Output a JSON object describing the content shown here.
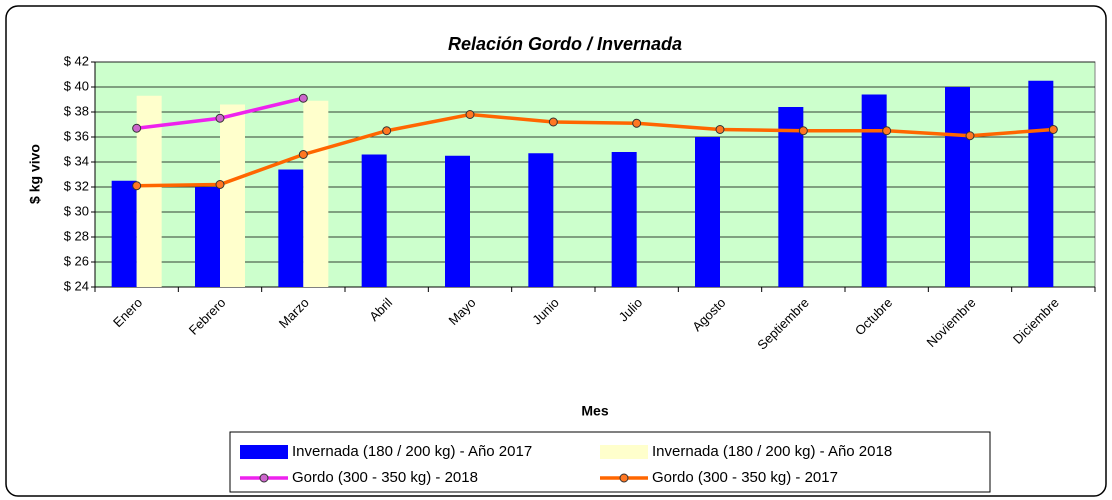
{
  "chart_data": {
    "type": "bar",
    "title": "Relación Gordo / Invernada",
    "y_label": "$ kg vivo",
    "x_label": "Mes",
    "categories": [
      "Enero",
      "Febrero",
      "Marzo",
      "Abril",
      "Mayo",
      "Junio",
      "Julio",
      "Agosto",
      "Septiembre",
      "Octubre",
      "Noviembre",
      "Diciembre"
    ],
    "series": [
      {
        "name": "Invernada (180 / 200 kg) - Año 2017",
        "type": "bar",
        "color": "#0000ff",
        "values": [
          32.5,
          32.0,
          33.4,
          34.6,
          34.5,
          34.7,
          34.8,
          36.0,
          38.4,
          39.4,
          40.0,
          40.5
        ]
      },
      {
        "name": "Invernada (180 / 200 kg) - Año 2018",
        "type": "bar",
        "color": "#ffffcc",
        "values": [
          39.3,
          38.6,
          38.9,
          null,
          null,
          null,
          null,
          null,
          null,
          null,
          null,
          null
        ]
      },
      {
        "name": "Gordo (300 - 350 kg) - 2018",
        "type": "line",
        "color": "#ee22ee",
        "marker_color": "#cc66cc",
        "values": [
          36.7,
          37.5,
          39.1,
          null,
          null,
          null,
          null,
          null,
          null,
          null,
          null,
          null
        ]
      },
      {
        "name": "Gordo (300 - 350 kg) - 2017",
        "type": "line",
        "color": "#ff6600",
        "marker_color": "#ff7722",
        "values": [
          32.1,
          32.2,
          34.6,
          36.5,
          37.8,
          37.2,
          37.1,
          36.6,
          36.5,
          36.5,
          36.1,
          36.6
        ]
      }
    ],
    "ylim": [
      24,
      42
    ],
    "yticks": [
      {
        "value": 24,
        "label": "$ 24"
      },
      {
        "value": 26,
        "label": "$ 26"
      },
      {
        "value": 28,
        "label": "$ 28"
      },
      {
        "value": 30,
        "label": "$ 30"
      },
      {
        "value": 32,
        "label": "$ 32"
      },
      {
        "value": 34,
        "label": "$ 34"
      },
      {
        "value": 36,
        "label": "$ 36"
      },
      {
        "value": 38,
        "label": "$ 38"
      },
      {
        "value": 40,
        "label": "$ 40"
      },
      {
        "value": 42,
        "label": "$ 42"
      }
    ],
    "grid": true,
    "plot_background": "#ccffcc",
    "legend": "bottom"
  }
}
